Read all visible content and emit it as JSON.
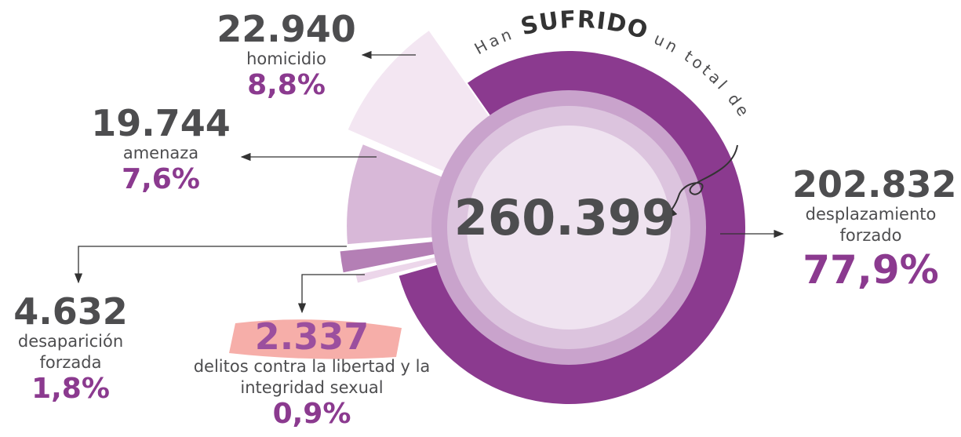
{
  "chart_data": {
    "type": "pie",
    "heading": [
      "Han",
      "SUFRIDO",
      "un total de"
    ],
    "total": 260399,
    "total_label": "260.399",
    "categories": [
      "desplazamiento forzado",
      "homicidio",
      "amenaza",
      "desaparición forzada",
      "delitos contra la libertad y la integridad sexual"
    ],
    "values": [
      202832,
      22940,
      19744,
      4632,
      2337
    ],
    "value_labels": [
      "202.832",
      "22.940",
      "19.744",
      "4.632",
      "2.337"
    ],
    "shares": [
      77.9,
      8.8,
      7.6,
      1.8,
      0.9
    ],
    "share_labels": [
      "77,9%",
      "8,8%",
      "7,6%",
      "1,8%",
      "0,9%"
    ],
    "colors": [
      "#8b3a8f",
      "#f3e6f2",
      "#d8b8d8",
      "#b47fb5",
      "#ecd6ea"
    ]
  }
}
